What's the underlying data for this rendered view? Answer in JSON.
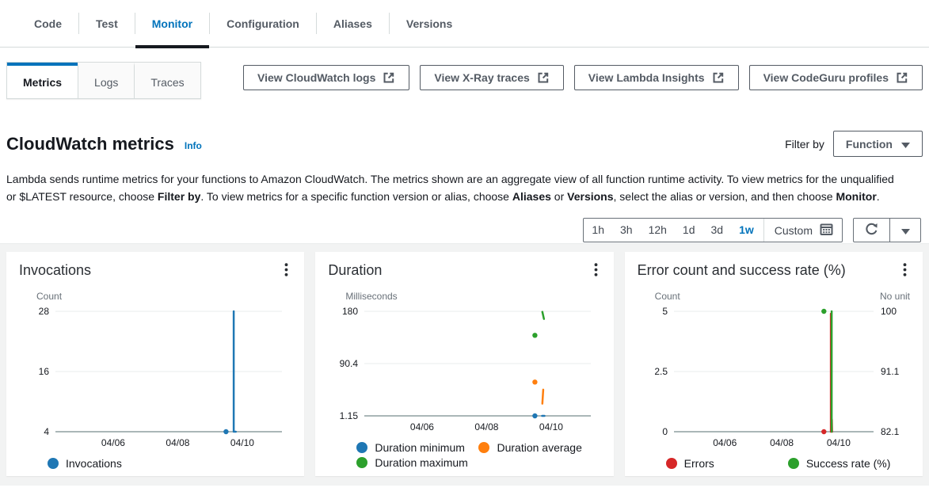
{
  "colors": {
    "link_blue": "#0073bb",
    "text_dark": "#16191f",
    "secondary_gray": "#545b64",
    "panel_bg": "#f2f3f3",
    "chart_blue": "#1f77b4",
    "chart_orange": "#ff7f0e",
    "chart_green": "#2ca02c",
    "chart_red": "#d62728"
  },
  "tabs": [
    {
      "label": "Code",
      "active": false
    },
    {
      "label": "Test",
      "active": false
    },
    {
      "label": "Monitor",
      "active": true
    },
    {
      "label": "Configuration",
      "active": false
    },
    {
      "label": "Aliases",
      "active": false
    },
    {
      "label": "Versions",
      "active": false
    }
  ],
  "subtabs": [
    {
      "label": "Metrics",
      "active": true
    },
    {
      "label": "Logs",
      "active": false
    },
    {
      "label": "Traces",
      "active": false
    }
  ],
  "action_buttons": [
    {
      "label": "View CloudWatch logs"
    },
    {
      "label": "View X-Ray traces"
    },
    {
      "label": "View Lambda Insights"
    },
    {
      "label": "View CodeGuru profiles"
    }
  ],
  "heading": {
    "title": "CloudWatch metrics",
    "info_label": "Info"
  },
  "filter": {
    "label": "Filter by",
    "selected": "Function"
  },
  "description": {
    "segments": [
      {
        "text": "Lambda sends runtime metrics for your functions to Amazon CloudWatch. The metrics shown are an aggregate view of all function runtime activity. To view metrics for the unqualified or $LATEST resource, choose ",
        "bold": false
      },
      {
        "text": "Filter by",
        "bold": true
      },
      {
        "text": ". To view metrics for a specific function version or alias, choose ",
        "bold": false
      },
      {
        "text": "Aliases",
        "bold": true
      },
      {
        "text": " or ",
        "bold": false
      },
      {
        "text": "Versions",
        "bold": true
      },
      {
        "text": ", select the alias or version, and then choose ",
        "bold": false
      },
      {
        "text": "Monitor",
        "bold": true
      },
      {
        "text": ".",
        "bold": false
      }
    ]
  },
  "time_range": {
    "options": [
      {
        "label": "1h",
        "selected": false
      },
      {
        "label": "3h",
        "selected": false
      },
      {
        "label": "12h",
        "selected": false
      },
      {
        "label": "1d",
        "selected": false
      },
      {
        "label": "3d",
        "selected": false
      },
      {
        "label": "1w",
        "selected": true
      }
    ],
    "custom_label": "Custom"
  },
  "chart_data": [
    {
      "type": "line",
      "title": "Invocations",
      "left_axis": {
        "label": "Count",
        "ticks": [
          28,
          16,
          4
        ]
      },
      "right_axis": null,
      "x_ticks": [
        {
          "label": "04/06",
          "f": 0.255
        },
        {
          "label": "04/08",
          "f": 0.54
        },
        {
          "label": "04/10",
          "f": 0.825
        }
      ],
      "series": [
        {
          "name": "Invocations",
          "color": "#1f77b4",
          "axis": "left",
          "dots": [
            {
              "f": 0.753,
              "v": 4
            }
          ],
          "paths": [
            [
              {
                "f": 0.787,
                "v": 4
              },
              {
                "f": 0.787,
                "v": 28
              }
            ],
            [
              {
                "f": 0.792,
                "v": 4
              },
              {
                "f": 0.796,
                "v": 4
              }
            ]
          ]
        }
      ]
    },
    {
      "type": "line",
      "title": "Duration",
      "left_axis": {
        "label": "Milliseconds",
        "ticks": [
          180,
          90.4,
          1.15
        ]
      },
      "right_axis": null,
      "x_ticks": [
        {
          "label": "04/06",
          "f": 0.255
        },
        {
          "label": "04/08",
          "f": 0.54
        },
        {
          "label": "04/10",
          "f": 0.825
        }
      ],
      "series": [
        {
          "name": "Duration minimum",
          "color": "#1f77b4",
          "axis": "left",
          "dots": [
            {
              "f": 0.753,
              "v": 1.15
            }
          ],
          "paths": [
            [
              {
                "f": 0.785,
                "v": 1.15
              },
              {
                "f": 0.795,
                "v": 1.15
              }
            ]
          ]
        },
        {
          "name": "Duration average",
          "color": "#ff7f0e",
          "axis": "left",
          "dots": [
            {
              "f": 0.753,
              "v": 59
            }
          ],
          "paths": [
            [
              {
                "f": 0.786,
                "v": 22
              },
              {
                "f": 0.79,
                "v": 46
              }
            ]
          ]
        },
        {
          "name": "Duration maximum",
          "color": "#2ca02c",
          "axis": "left",
          "dots": [
            {
              "f": 0.753,
              "v": 139
            }
          ],
          "paths": [
            [
              {
                "f": 0.786,
                "v": 179
              },
              {
                "f": 0.793,
                "v": 167
              }
            ]
          ]
        }
      ]
    },
    {
      "type": "line",
      "title": "Error count and success rate (%)",
      "left_axis": {
        "label": "Count",
        "ticks": [
          5,
          2.5,
          0
        ]
      },
      "right_axis": {
        "label": "No unit",
        "ticks": [
          100,
          91.1,
          82.1
        ]
      },
      "x_ticks": [
        {
          "label": "04/06",
          "f": 0.255
        },
        {
          "label": "04/08",
          "f": 0.54
        },
        {
          "label": "04/10",
          "f": 0.825
        }
      ],
      "series": [
        {
          "name": "Errors",
          "color": "#d62728",
          "axis": "left",
          "dots": [
            {
              "f": 0.751,
              "v": 0
            }
          ],
          "paths": [
            [
              {
                "f": 0.786,
                "v": 0
              },
              {
                "f": 0.786,
                "v": 4.9
              }
            ],
            [
              {
                "f": 0.791,
                "v": 0.5
              },
              {
                "f": 0.792,
                "v": 0
              }
            ]
          ]
        },
        {
          "name": "Success rate (%)",
          "color": "#2ca02c",
          "axis": "right",
          "dots": [
            {
              "f": 0.751,
              "v": 100
            }
          ],
          "paths": [
            [
              {
                "f": 0.79,
                "v": 82.1
              },
              {
                "f": 0.79,
                "v": 100
              }
            ]
          ]
        }
      ]
    }
  ]
}
